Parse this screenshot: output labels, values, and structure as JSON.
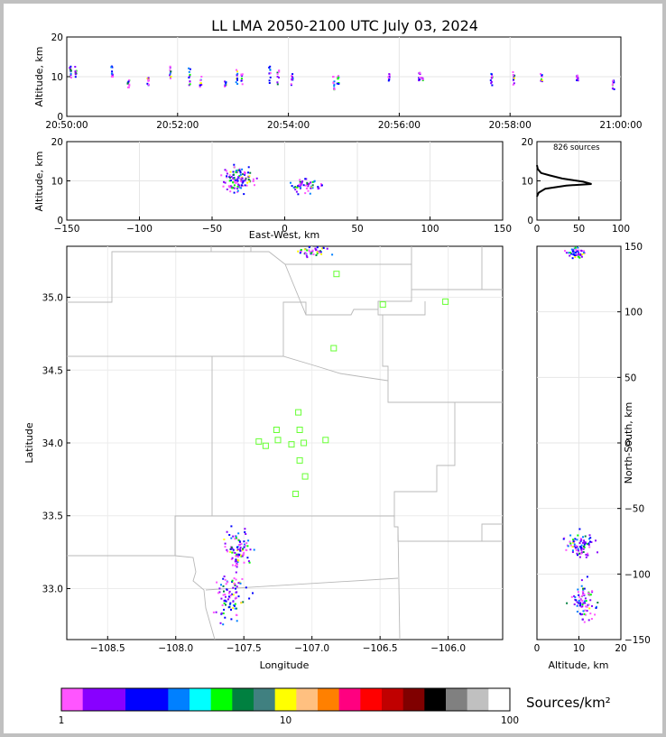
{
  "chart_data": [
    {
      "type": "scatter",
      "panel": "time-altitude",
      "title": "LL LMA 2050-2100 UTC July 03, 2024",
      "xlabel": "",
      "ylabel": "Altitude, km",
      "ylim": [
        0,
        20
      ],
      "xlim": [
        "20:50:00",
        "21:00:00"
      ],
      "x_ticks": [
        "20:50:00",
        "20:52:00",
        "20:54:00",
        "20:56:00",
        "20:58:00",
        "21:00:00"
      ],
      "y_ticks": [
        "0",
        "10",
        "20"
      ],
      "grid": true,
      "columns": [
        {
          "time_min": 0.05,
          "alt_lo": 10,
          "alt_hi": 13
        },
        {
          "time_min": 0.15,
          "alt_lo": 10,
          "alt_hi": 13
        },
        {
          "time_min": 0.8,
          "alt_lo": 10,
          "alt_hi": 13
        },
        {
          "time_min": 1.1,
          "alt_lo": 7.5,
          "alt_hi": 9.5
        },
        {
          "time_min": 1.45,
          "alt_lo": 8,
          "alt_hi": 10
        },
        {
          "time_min": 1.85,
          "alt_lo": 9,
          "alt_hi": 13
        },
        {
          "time_min": 2.2,
          "alt_lo": 8,
          "alt_hi": 12.5
        },
        {
          "time_min": 2.4,
          "alt_lo": 7.5,
          "alt_hi": 12
        },
        {
          "time_min": 2.85,
          "alt_lo": 7.5,
          "alt_hi": 9
        },
        {
          "time_min": 3.05,
          "alt_lo": 8,
          "alt_hi": 12
        },
        {
          "time_min": 3.15,
          "alt_lo": 8,
          "alt_hi": 11
        },
        {
          "time_min": 3.65,
          "alt_lo": 8,
          "alt_hi": 13
        },
        {
          "time_min": 3.8,
          "alt_lo": 8,
          "alt_hi": 12
        },
        {
          "time_min": 4.05,
          "alt_lo": 8,
          "alt_hi": 11
        },
        {
          "time_min": 4.8,
          "alt_lo": 7,
          "alt_hi": 12
        },
        {
          "time_min": 4.88,
          "alt_lo": 8,
          "alt_hi": 10.5
        },
        {
          "time_min": 5.8,
          "alt_lo": 9,
          "alt_hi": 11
        },
        {
          "time_min": 6.35,
          "alt_lo": 9,
          "alt_hi": 11.5
        },
        {
          "time_min": 6.4,
          "alt_lo": 9,
          "alt_hi": 10
        },
        {
          "time_min": 7.65,
          "alt_lo": 8,
          "alt_hi": 11
        },
        {
          "time_min": 8.05,
          "alt_lo": 8,
          "alt_hi": 12
        },
        {
          "time_min": 8.55,
          "alt_lo": 9,
          "alt_hi": 11
        },
        {
          "time_min": 9.2,
          "alt_lo": 9,
          "alt_hi": 10.5
        },
        {
          "time_min": 9.85,
          "alt_lo": 7,
          "alt_hi": 9.5
        }
      ]
    },
    {
      "type": "scatter",
      "panel": "ew-altitude",
      "xlabel": "East-West, km",
      "ylabel": "Altitude, km",
      "xlim": [
        -150,
        150
      ],
      "ylim": [
        0,
        20
      ],
      "x_ticks": [
        "−150",
        "−100",
        "−50",
        "0",
        "50",
        "100",
        "150"
      ],
      "y_ticks": [
        "0",
        "10",
        "20"
      ],
      "grid": true,
      "clusters": [
        {
          "x": -33,
          "y": 10.5,
          "sx": 5,
          "sy": 1.6
        },
        {
          "x": 15,
          "y": 9.0,
          "sx": 5,
          "sy": 1.0
        }
      ]
    },
    {
      "type": "line",
      "panel": "altitude-histogram",
      "annotation": "826 sources",
      "xlim": [
        0,
        100
      ],
      "ylim": [
        0,
        20
      ],
      "x_ticks": [
        "0",
        "50",
        "100"
      ],
      "y_ticks": [
        "0",
        "10",
        "20"
      ],
      "grid": true,
      "profile": [
        [
          0,
          6
        ],
        [
          2,
          7
        ],
        [
          10,
          8
        ],
        [
          35,
          8.8
        ],
        [
          65,
          9.2
        ],
        [
          55,
          9.8
        ],
        [
          30,
          10.6
        ],
        [
          15,
          11.4
        ],
        [
          5,
          12
        ],
        [
          1,
          13
        ],
        [
          0,
          14
        ]
      ]
    },
    {
      "type": "scatter",
      "panel": "plan-view",
      "xlabel": "Longitude",
      "ylabel": "Latitude",
      "xlim": [
        -108.8,
        -105.6
      ],
      "ylim": [
        32.65,
        35.35
      ],
      "x_ticks": [
        "−108.5",
        "−108.0",
        "−107.5",
        "−107.0",
        "−106.5",
        "−106.0"
      ],
      "y_ticks": [
        "33.0",
        "33.5",
        "34.0",
        "34.5",
        "35.0"
      ],
      "grid": true,
      "clusters": [
        {
          "x": -107.0,
          "y": 35.32,
          "sx": 0.05,
          "sy": 0.02
        },
        {
          "x": -107.55,
          "y": 33.28,
          "sx": 0.04,
          "sy": 0.06
        },
        {
          "x": -107.6,
          "y": 32.95,
          "sx": 0.06,
          "sy": 0.08
        }
      ],
      "stations": [
        {
          "lon": -106.82,
          "lat": 35.16
        },
        {
          "lon": -106.48,
          "lat": 34.95
        },
        {
          "lon": -106.02,
          "lat": 34.97
        },
        {
          "lon": -106.84,
          "lat": 34.65
        },
        {
          "lon": -107.1,
          "lat": 34.21
        },
        {
          "lon": -107.26,
          "lat": 34.09
        },
        {
          "lon": -107.09,
          "lat": 34.09
        },
        {
          "lon": -107.39,
          "lat": 34.01
        },
        {
          "lon": -107.34,
          "lat": 33.98
        },
        {
          "lon": -107.25,
          "lat": 34.02
        },
        {
          "lon": -107.15,
          "lat": 33.99
        },
        {
          "lon": -107.06,
          "lat": 34.0
        },
        {
          "lon": -106.9,
          "lat": 34.02
        },
        {
          "lon": -107.09,
          "lat": 33.88
        },
        {
          "lon": -107.05,
          "lat": 33.77
        },
        {
          "lon": -107.12,
          "lat": 33.65
        }
      ]
    },
    {
      "type": "scatter",
      "panel": "altitude-ns",
      "xlabel": "Altitude, km",
      "ylabel": "North-South, km",
      "xlim": [
        0,
        20
      ],
      "ylim": [
        -150,
        150
      ],
      "x_ticks": [
        "0",
        "10",
        "20"
      ],
      "y_ticks": [
        "−150",
        "−100",
        "−50",
        "0",
        "50",
        "100",
        "150"
      ],
      "grid": true,
      "clusters": [
        {
          "x": 9,
          "y": 146,
          "sx": 1.2,
          "sy": 2
        },
        {
          "x": 10,
          "y": -78,
          "sx": 1.6,
          "sy": 5
        },
        {
          "x": 11,
          "y": -120,
          "sx": 1.4,
          "sy": 8
        }
      ]
    },
    {
      "type": "colorbar",
      "label": "Sources/km²",
      "scale": "log",
      "range": [
        1,
        100
      ],
      "tick_labels": [
        "1",
        "10",
        "100"
      ],
      "colors": [
        "#ff55ff",
        "#8800ff",
        "#8800ff",
        "#0000ff",
        "#0000ff",
        "#0080ff",
        "#00ffff",
        "#00ff00",
        "#008040",
        "#408080",
        "#ffff00",
        "#ffc080",
        "#ff8000",
        "#ff0080",
        "#ff0000",
        "#c00000",
        "#800000",
        "#000000",
        "#808080",
        "#c0c0c0",
        "#ffffff"
      ]
    }
  ]
}
